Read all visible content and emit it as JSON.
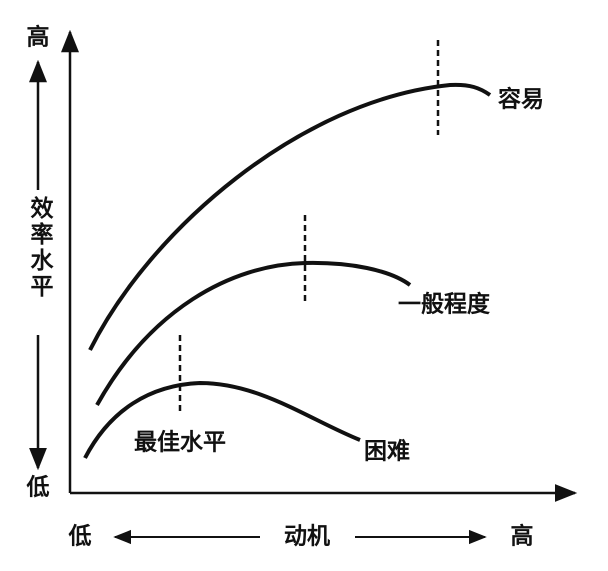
{
  "y_axis": {
    "high": "高",
    "label": "效率水平",
    "low": "低"
  },
  "x_axis": {
    "low": "低",
    "label": "动机",
    "high": "高"
  },
  "curves": [
    {
      "label": "容易"
    },
    {
      "label": "一般程度"
    },
    {
      "label": "困难"
    }
  ],
  "annotation": "最佳水平"
}
